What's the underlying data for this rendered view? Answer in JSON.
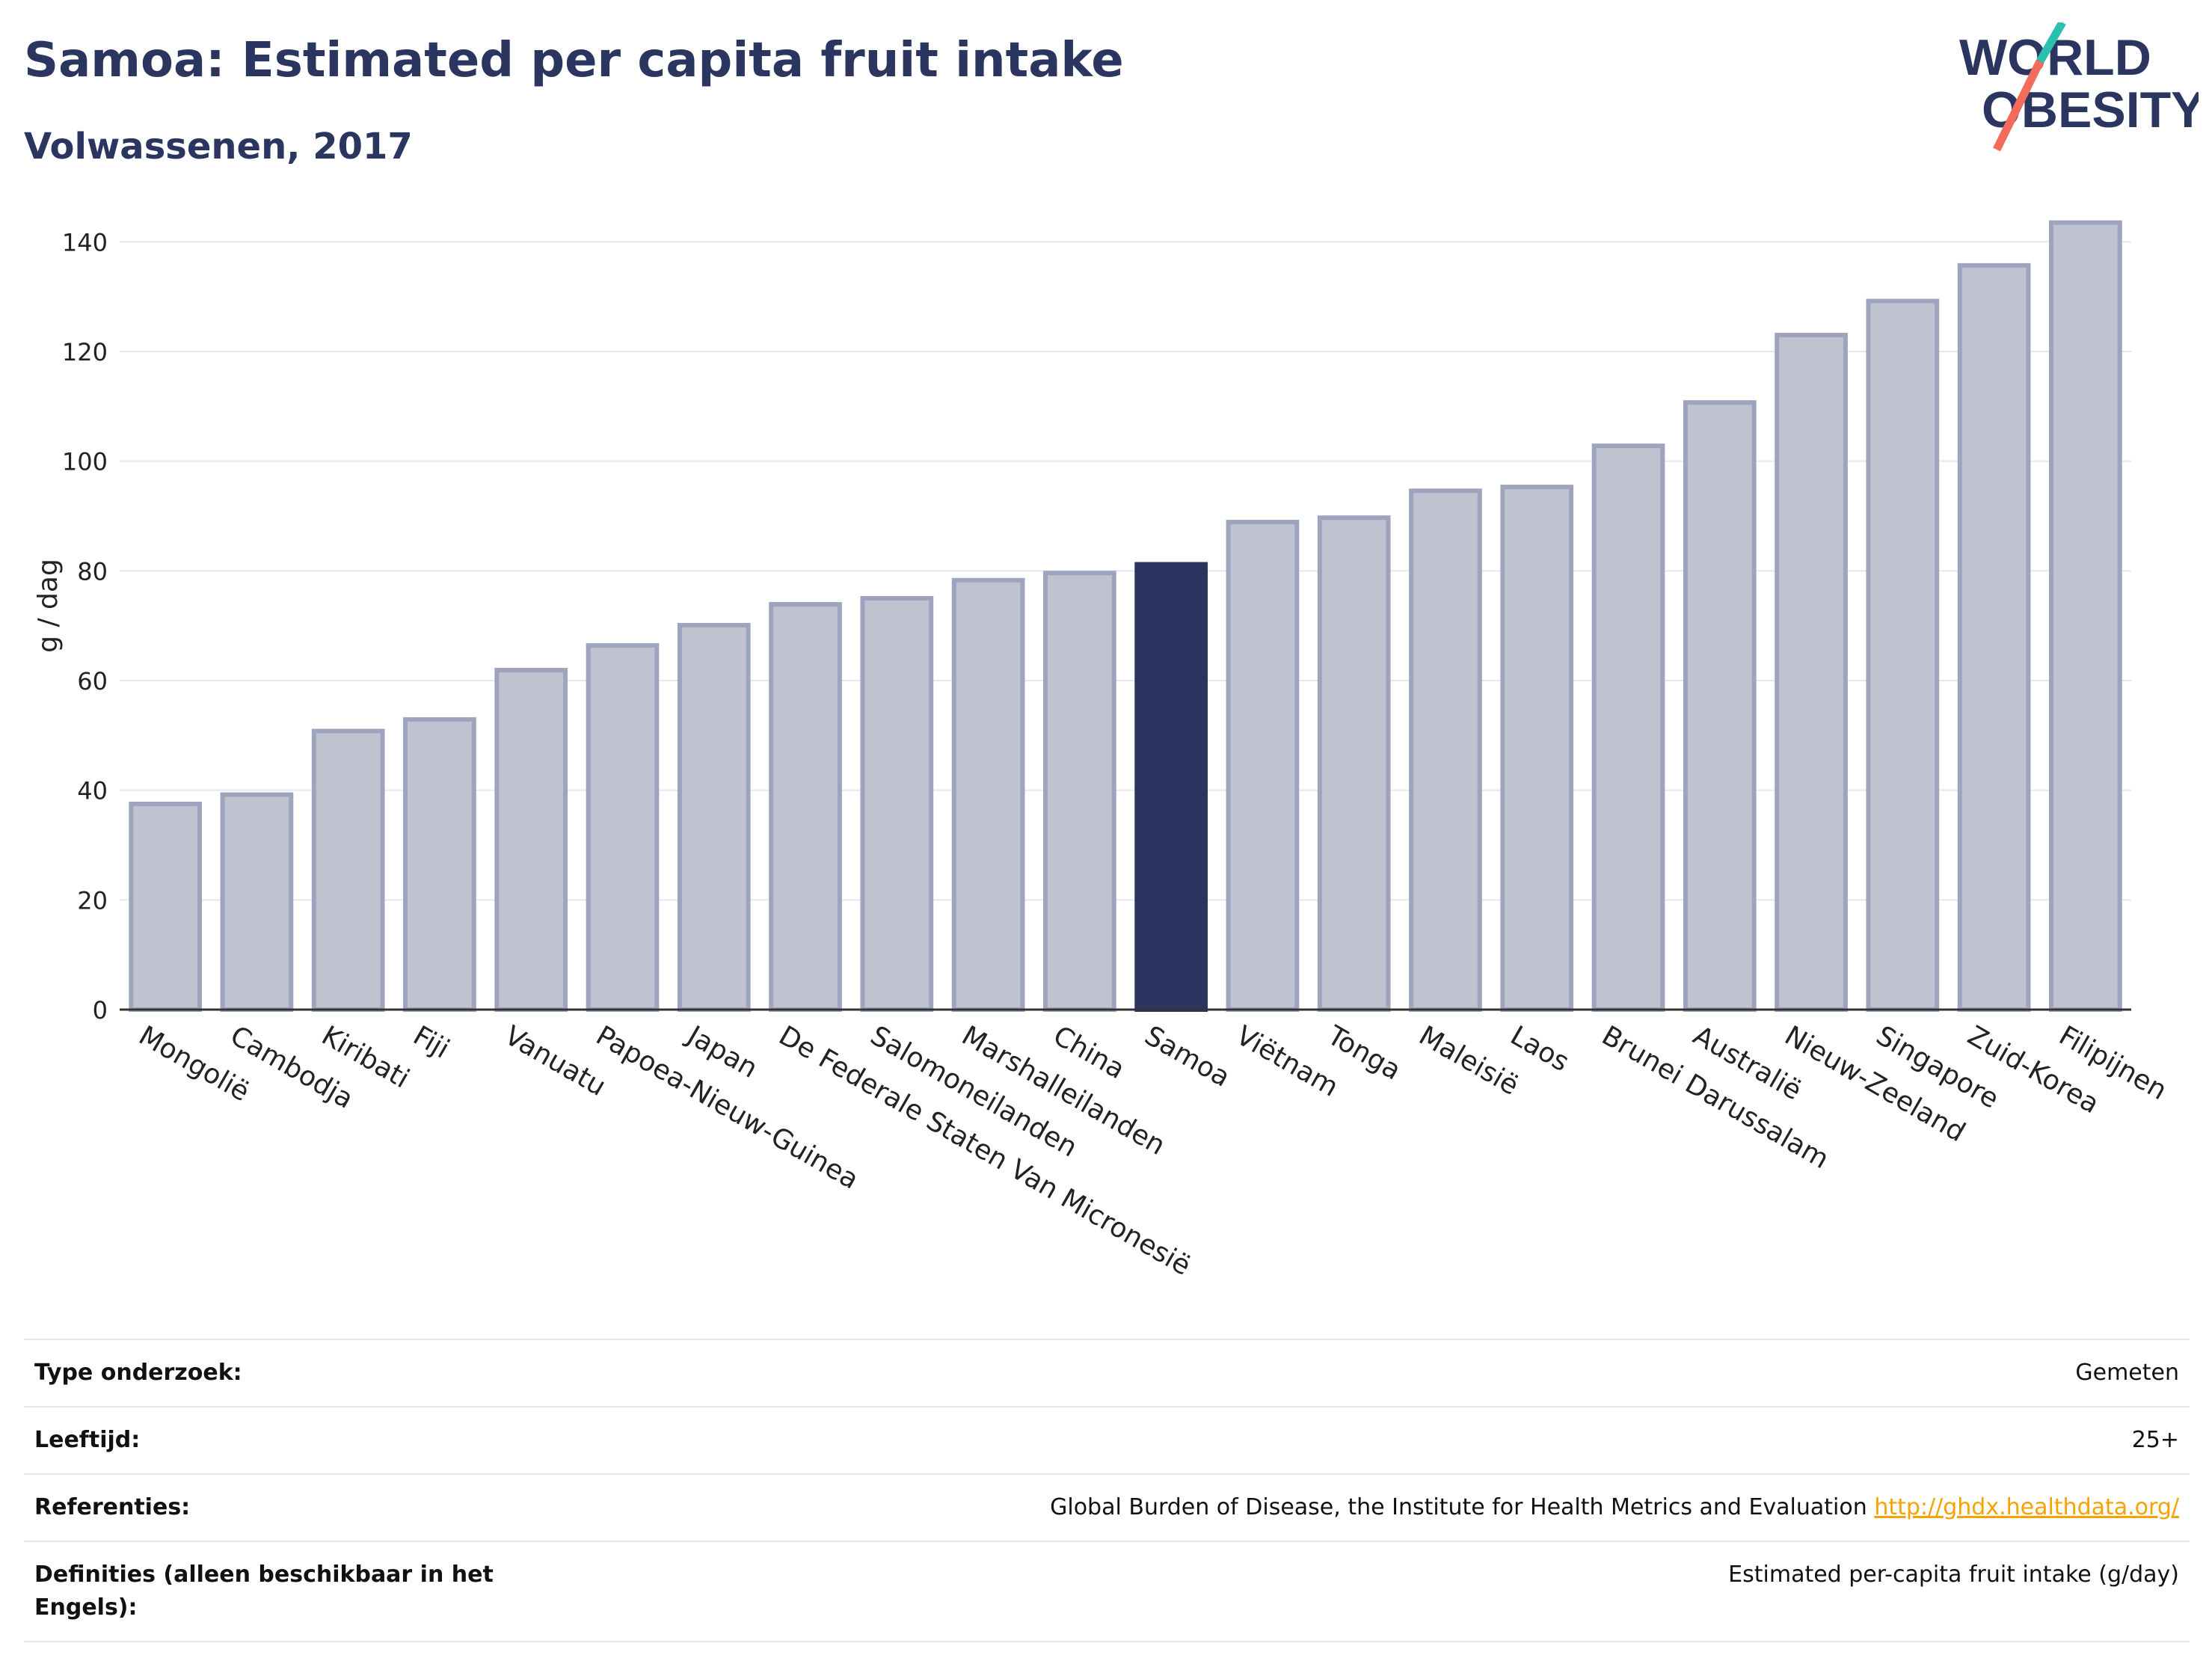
{
  "header": {
    "title": "Samoa: Estimated per capita fruit intake",
    "subtitle": "Volwassenen, 2017"
  },
  "logo": {
    "line1": "WORLD",
    "line2": "OBESITY",
    "colors": {
      "text": "#2a3560",
      "slash_top": "#2bbfb0",
      "slash_bottom": "#f26b5b"
    }
  },
  "chart_data": {
    "type": "bar",
    "ylabel": "g / dag",
    "ylim": [
      0,
      150
    ],
    "yticks": [
      0,
      20,
      40,
      60,
      80,
      100,
      120,
      140
    ],
    "grid": true,
    "highlight": "Samoa",
    "colors": {
      "bar": "#bfc3d0",
      "bar_edge": "#9ea4bd",
      "highlight": "#2a3560"
    },
    "categories": [
      "Mongolië",
      "Cambodja",
      "Kiribati",
      "Fiji",
      "Vanuatu",
      "Papoea-Nieuw-Guinea",
      "Japan",
      "De Federale Staten Van Micronesië",
      "Salomoneilanden",
      "Marshalleilanden",
      "China",
      "Samoa",
      "Viëtnam",
      "Tonga",
      "Maleisië",
      "Laos",
      "Brunei Darussalam",
      "Australië",
      "Nieuw-Zeeland",
      "Singapore",
      "Zuid-Korea",
      "Filipijnen"
    ],
    "values": [
      37.5,
      39.2,
      50.8,
      52.9,
      61.9,
      66.4,
      70.1,
      73.9,
      75.0,
      78.3,
      79.6,
      81.2,
      88.9,
      89.7,
      94.6,
      95.3,
      102.8,
      110.7,
      123.0,
      129.2,
      135.7,
      143.5
    ]
  },
  "info": {
    "rows": [
      {
        "label": "Type onderzoek:",
        "value": "Gemeten"
      },
      {
        "label": "Leeftijd:",
        "value": "25+"
      },
      {
        "label": "Referenties:",
        "value": "Global Burden of Disease, the Institute for Health Metrics and Evaluation",
        "link": "http://ghdx.healthdata.org/"
      },
      {
        "label": "Definities (alleen beschikbaar in het Engels):",
        "value": "Estimated per-capita fruit intake (g/day)"
      }
    ]
  }
}
